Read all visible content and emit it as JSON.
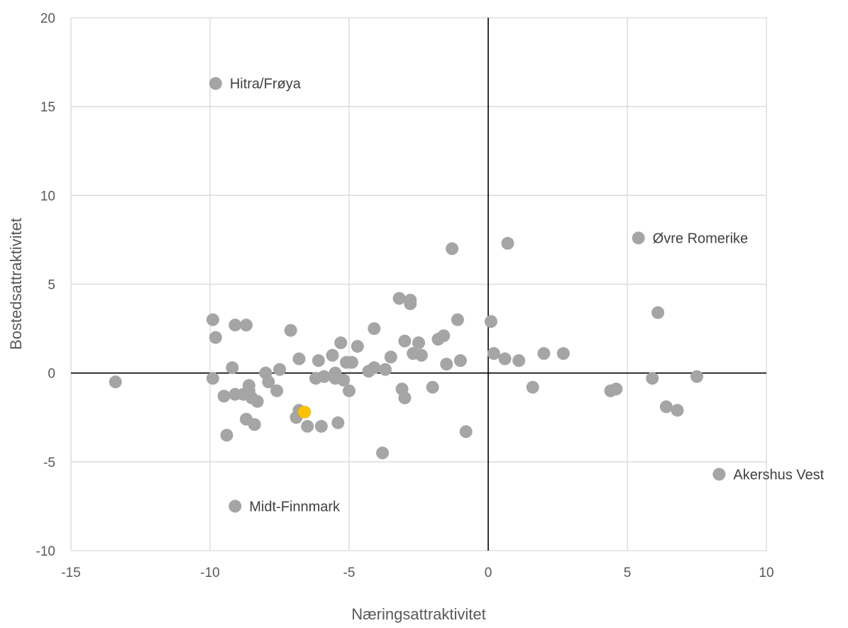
{
  "chart_data": {
    "type": "scatter",
    "title": "",
    "xlabel": "Næringsattraktivitet",
    "ylabel": "Bostedsattraktivitet",
    "xlim": [
      -15,
      10
    ],
    "ylim": [
      -10,
      20
    ],
    "xticks": [
      -15,
      -10,
      -5,
      0,
      5,
      10
    ],
    "yticks": [
      -10,
      -5,
      0,
      5,
      10,
      15,
      20
    ],
    "grid": true,
    "legend": "none",
    "colors": {
      "points": "#a5a5a5",
      "highlight": "#ffc000",
      "grid": "#d9d9d9",
      "axis": "#000000"
    },
    "points": [
      {
        "x": -13.4,
        "y": -0.5
      },
      {
        "x": -9.8,
        "y": 16.3,
        "label": "Hitra/Frøya"
      },
      {
        "x": -9.9,
        "y": 3.0
      },
      {
        "x": -9.8,
        "y": 2.0
      },
      {
        "x": -9.9,
        "y": -0.3
      },
      {
        "x": -9.5,
        "y": -1.3
      },
      {
        "x": -9.4,
        "y": -3.5
      },
      {
        "x": -9.2,
        "y": 0.3
      },
      {
        "x": -9.1,
        "y": 2.7
      },
      {
        "x": -9.1,
        "y": -1.2
      },
      {
        "x": -9.1,
        "y": -7.5,
        "label": "Midt-Finnmark"
      },
      {
        "x": -8.8,
        "y": -1.2
      },
      {
        "x": -8.7,
        "y": 2.7
      },
      {
        "x": -8.7,
        "y": -2.6
      },
      {
        "x": -8.6,
        "y": -0.7
      },
      {
        "x": -8.6,
        "y": -1.0
      },
      {
        "x": -8.5,
        "y": -1.4
      },
      {
        "x": -8.4,
        "y": -2.9
      },
      {
        "x": -8.3,
        "y": -1.6
      },
      {
        "x": -8.0,
        "y": 0.0
      },
      {
        "x": -7.9,
        "y": -0.5
      },
      {
        "x": -7.6,
        "y": -1.0
      },
      {
        "x": -7.5,
        "y": 0.2
      },
      {
        "x": -7.1,
        "y": 2.4
      },
      {
        "x": -6.9,
        "y": -2.5
      },
      {
        "x": -6.8,
        "y": -2.1
      },
      {
        "x": -6.8,
        "y": 0.8
      },
      {
        "x": -6.5,
        "y": -3.0
      },
      {
        "x": -6.2,
        "y": -0.3
      },
      {
        "x": -6.1,
        "y": 0.7
      },
      {
        "x": -6.0,
        "y": -3.0
      },
      {
        "x": -5.9,
        "y": -0.2
      },
      {
        "x": -5.6,
        "y": 1.0
      },
      {
        "x": -5.5,
        "y": 0.0
      },
      {
        "x": -5.5,
        "y": -0.3
      },
      {
        "x": -5.4,
        "y": -2.8
      },
      {
        "x": -5.3,
        "y": 1.7
      },
      {
        "x": -5.2,
        "y": -0.4
      },
      {
        "x": -5.1,
        "y": 0.6
      },
      {
        "x": -4.9,
        "y": 0.6
      },
      {
        "x": -5.0,
        "y": -1.0
      },
      {
        "x": -4.7,
        "y": 1.5
      },
      {
        "x": -4.3,
        "y": 0.1
      },
      {
        "x": -4.1,
        "y": 0.3
      },
      {
        "x": -4.1,
        "y": 2.5
      },
      {
        "x": -3.8,
        "y": -4.5
      },
      {
        "x": -3.7,
        "y": 0.2
      },
      {
        "x": -3.5,
        "y": 0.9
      },
      {
        "x": -3.2,
        "y": 4.2
      },
      {
        "x": -3.1,
        "y": -0.9
      },
      {
        "x": -3.0,
        "y": -1.4
      },
      {
        "x": -3.0,
        "y": 1.8
      },
      {
        "x": -2.8,
        "y": 4.1
      },
      {
        "x": -2.8,
        "y": 3.9
      },
      {
        "x": -2.7,
        "y": 1.1
      },
      {
        "x": -2.5,
        "y": 1.7
      },
      {
        "x": -2.4,
        "y": 1.0
      },
      {
        "x": -2.0,
        "y": -0.8
      },
      {
        "x": -1.8,
        "y": 1.9
      },
      {
        "x": -1.6,
        "y": 2.1
      },
      {
        "x": -1.5,
        "y": 0.5
      },
      {
        "x": -1.3,
        "y": 7.0
      },
      {
        "x": -1.1,
        "y": 3.0
      },
      {
        "x": -1.0,
        "y": 0.7
      },
      {
        "x": -0.8,
        "y": -3.3
      },
      {
        "x": 0.1,
        "y": 2.9
      },
      {
        "x": 0.2,
        "y": 1.1
      },
      {
        "x": 0.6,
        "y": 0.8
      },
      {
        "x": 0.7,
        "y": 7.3
      },
      {
        "x": 1.1,
        "y": 0.7
      },
      {
        "x": 1.6,
        "y": -0.8
      },
      {
        "x": 2.0,
        "y": 1.1
      },
      {
        "x": 2.7,
        "y": 1.1
      },
      {
        "x": 4.4,
        "y": -1.0
      },
      {
        "x": 4.6,
        "y": -0.9
      },
      {
        "x": 5.4,
        "y": 7.6,
        "label": "Øvre Romerike"
      },
      {
        "x": 5.9,
        "y": -0.3
      },
      {
        "x": 6.1,
        "y": 3.4
      },
      {
        "x": 6.4,
        "y": -1.9
      },
      {
        "x": 6.8,
        "y": -2.1
      },
      {
        "x": 7.5,
        "y": -0.2
      },
      {
        "x": 8.3,
        "y": -5.7,
        "label": "Akershus Vest"
      },
      {
        "x": -6.6,
        "y": -2.2,
        "highlight": true
      }
    ]
  }
}
